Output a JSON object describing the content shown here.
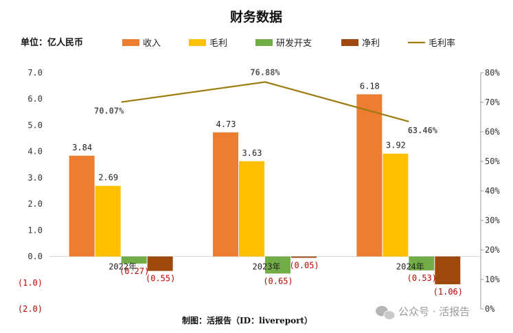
{
  "chart_data": {
    "type": "bar",
    "title": "财务数据",
    "unit_label": "单位：亿人民币",
    "categories": [
      "2022年",
      "2023年",
      "2024年"
    ],
    "series": [
      {
        "name": "收入",
        "kind": "bar",
        "color": "#ED7D31",
        "values": [
          3.84,
          4.73,
          6.18
        ],
        "labels": [
          "3.84",
          "4.73",
          "6.18"
        ]
      },
      {
        "name": "毛利",
        "kind": "bar",
        "color": "#FFC000",
        "values": [
          2.69,
          3.63,
          3.92
        ],
        "labels": [
          "2.69",
          "3.63",
          "3.92"
        ]
      },
      {
        "name": "研发开支",
        "kind": "bar",
        "color": "#70AD47",
        "values": [
          -0.27,
          -0.65,
          -0.53
        ],
        "labels": [
          "(0.27)",
          "(0.65)",
          "(0.53)"
        ]
      },
      {
        "name": "净利",
        "kind": "bar",
        "color": "#9E480E",
        "values": [
          -0.55,
          -0.05,
          -1.06
        ],
        "labels": [
          "(0.55)",
          "(0.05)",
          "(1.06)"
        ]
      },
      {
        "name": "毛利率",
        "kind": "line",
        "axis": "right",
        "color": "#9C7C0F",
        "values": [
          70.07,
          76.88,
          63.46
        ],
        "labels": [
          "70.07%",
          "76.88%",
          "63.46%"
        ]
      }
    ],
    "y_left": {
      "range": [
        -2,
        7
      ],
      "ticks": [
        "7.0",
        "6.0",
        "5.0",
        "4.0",
        "3.0",
        "2.0",
        "1.0",
        "0.0",
        "(1.0)",
        "(2.0)"
      ]
    },
    "y_right": {
      "range": [
        0,
        80
      ],
      "ticks": [
        "80%",
        "70%",
        "60%",
        "50%",
        "40%",
        "30%",
        "20%",
        "10%",
        "0%"
      ]
    },
    "legend_position": "top",
    "grid": false
  },
  "footer": "制图：活报告（ID：livereport）",
  "watermark": "公众号 · 活报告"
}
